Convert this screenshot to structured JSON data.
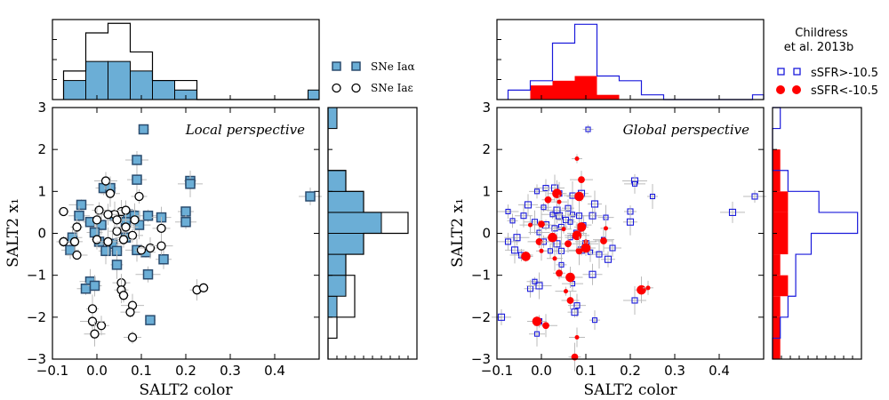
{
  "colors": {
    "alpha_fill": "#6baed6",
    "alpha_edge": "#2b4c6f",
    "eps_fill": "#ffffff",
    "eps_edge": "#000000",
    "high_ssfr": "#1a1adb",
    "low_ssfr": "#ff0000",
    "errbar": "#bbbbbb"
  },
  "chart_data": [
    {
      "id": "left",
      "type": "scatter",
      "annotation": "Local perspective",
      "xlabel": "SALT2  color",
      "ylabel": "SALT2  x₁",
      "xlim": [
        -0.1,
        0.5
      ],
      "ylim": [
        -3,
        3
      ],
      "xticks": [
        -0.1,
        0.0,
        0.1,
        0.2,
        0.3,
        0.4
      ],
      "xtick_labels": [
        "−0.1",
        "0.0",
        "0.1",
        "0.2",
        "0.3",
        "0.4"
      ],
      "yticks": [
        -3,
        -2,
        -1,
        0,
        1,
        2,
        3
      ],
      "ytick_labels": [
        "−3",
        "−2",
        "−1",
        "0",
        "1",
        "2",
        "3"
      ],
      "legend": [
        "SNe Iaα",
        "SNe Iaε"
      ],
      "series": [
        {
          "name": "SNe Iaα",
          "marker": "square",
          "points": [
            [
              0.105,
              2.48
            ],
            [
              0.09,
              1.75
            ],
            [
              0.09,
              1.28
            ],
            [
              0.015,
              1.08
            ],
            [
              0.03,
              1.08
            ],
            [
              -0.035,
              0.68
            ],
            [
              -0.04,
              0.42
            ],
            [
              0.04,
              0.42
            ],
            [
              0.07,
              0.45
            ],
            [
              0.085,
              0.42
            ],
            [
              0.115,
              0.42
            ],
            [
              0.145,
              0.38
            ],
            [
              0.2,
              0.52
            ],
            [
              0.21,
              1.25
            ],
            [
              0.21,
              1.18
            ],
            [
              0.2,
              0.27
            ],
            [
              0.065,
              0.27
            ],
            [
              -0.015,
              0.27
            ],
            [
              0.01,
              0.2
            ],
            [
              0.095,
              0.2
            ],
            [
              -0.055,
              -0.1
            ],
            [
              -0.005,
              0.02
            ],
            [
              0.005,
              -0.2
            ],
            [
              0.035,
              -0.25
            ],
            [
              0.065,
              -0.1
            ],
            [
              -0.06,
              -0.4
            ],
            [
              0.02,
              -0.42
            ],
            [
              0.045,
              -0.42
            ],
            [
              0.09,
              -0.4
            ],
            [
              0.11,
              -0.45
            ],
            [
              0.15,
              -0.62
            ],
            [
              0.045,
              -0.75
            ],
            [
              0.115,
              -0.98
            ],
            [
              -0.015,
              -1.15
            ],
            [
              -0.025,
              -1.32
            ],
            [
              -0.005,
              -1.25
            ],
            [
              0.12,
              -2.07
            ],
            [
              0.48,
              0.88
            ]
          ]
        },
        {
          "name": "SNe Iaε",
          "marker": "circle",
          "points": [
            [
              -0.075,
              0.52
            ],
            [
              0.02,
              1.25
            ],
            [
              0.03,
              0.95
            ],
            [
              0.095,
              0.88
            ],
            [
              0.055,
              0.52
            ],
            [
              0.04,
              0.45
            ],
            [
              0.065,
              0.55
            ],
            [
              0.085,
              0.32
            ],
            [
              0.005,
              0.55
            ],
            [
              0.0,
              0.32
            ],
            [
              0.045,
              0.32
            ],
            [
              0.025,
              0.45
            ],
            [
              0.045,
              0.05
            ],
            [
              -0.045,
              0.15
            ],
            [
              0.065,
              0.15
            ],
            [
              0.08,
              -0.05
            ],
            [
              0.145,
              0.12
            ],
            [
              -0.075,
              -0.2
            ],
            [
              0.0,
              -0.15
            ],
            [
              0.025,
              -0.2
            ],
            [
              0.06,
              -0.15
            ],
            [
              -0.05,
              -0.2
            ],
            [
              0.1,
              -0.4
            ],
            [
              0.12,
              -0.35
            ],
            [
              -0.045,
              -0.52
            ],
            [
              0.055,
              -1.18
            ],
            [
              0.055,
              -1.35
            ],
            [
              0.06,
              -1.48
            ],
            [
              0.08,
              -1.72
            ],
            [
              0.075,
              -1.88
            ],
            [
              0.01,
              -2.2
            ],
            [
              -0.01,
              -1.8
            ],
            [
              -0.01,
              -2.1
            ],
            [
              -0.005,
              -2.4
            ],
            [
              0.08,
              -2.48
            ],
            [
              0.225,
              -1.35
            ],
            [
              0.24,
              -1.3
            ],
            [
              0.145,
              -0.3
            ]
          ]
        }
      ]
    },
    {
      "id": "right",
      "type": "scatter",
      "annotation": "Global perspective",
      "xlabel": "SALT2  color",
      "ylabel": "SALT2  x₁",
      "xlim": [
        -0.1,
        0.5
      ],
      "ylim": [
        -3,
        3
      ],
      "xticks": [
        -0.1,
        0.0,
        0.1,
        0.2,
        0.3,
        0.4
      ],
      "xtick_labels": [
        "−0.1",
        "0.0",
        "0.1",
        "0.2",
        "0.3",
        "0.4"
      ],
      "yticks": [
        -3,
        -2,
        -1,
        0,
        1,
        2,
        3
      ],
      "ytick_labels": [
        "−3",
        "−2",
        "−1",
        "0",
        "1",
        "2",
        "3"
      ],
      "legend_title": [
        "Childress",
        "et al. 2013b"
      ],
      "legend": [
        "sSFR>-10.5",
        "sSFR<-10.5"
      ],
      "series": [
        {
          "name": "sSFR>-10.5",
          "marker": "square",
          "points": [
            [
              0.105,
              2.48
            ],
            [
              0.01,
              1.08
            ],
            [
              0.03,
              1.08
            ],
            [
              -0.01,
              1.0
            ],
            [
              0.04,
              0.95
            ],
            [
              0.21,
              1.25
            ],
            [
              0.21,
              1.18
            ],
            [
              0.07,
              0.9
            ],
            [
              0.09,
              0.95
            ],
            [
              0.25,
              0.88
            ],
            [
              0.48,
              0.88
            ],
            [
              -0.03,
              0.68
            ],
            [
              0.005,
              0.62
            ],
            [
              0.06,
              0.6
            ],
            [
              0.035,
              0.55
            ],
            [
              -0.075,
              0.52
            ],
            [
              -0.04,
              0.42
            ],
            [
              0.04,
              0.42
            ],
            [
              0.07,
              0.45
            ],
            [
              0.085,
              0.42
            ],
            [
              0.115,
              0.42
            ],
            [
              0.145,
              0.38
            ],
            [
              0.2,
              0.52
            ],
            [
              0.43,
              0.5
            ],
            [
              0.025,
              0.45
            ],
            [
              0.055,
              0.32
            ],
            [
              0.2,
              0.27
            ],
            [
              0.065,
              0.27
            ],
            [
              -0.015,
              0.27
            ],
            [
              0.01,
              0.2
            ],
            [
              0.095,
              0.2
            ],
            [
              0.045,
              0.15
            ],
            [
              -0.055,
              -0.1
            ],
            [
              -0.005,
              0.02
            ],
            [
              0.005,
              -0.2
            ],
            [
              0.035,
              -0.25
            ],
            [
              0.065,
              -0.1
            ],
            [
              -0.075,
              -0.2
            ],
            [
              -0.06,
              -0.4
            ],
            [
              0.02,
              -0.42
            ],
            [
              0.045,
              -0.42
            ],
            [
              0.09,
              -0.4
            ],
            [
              0.11,
              -0.45
            ],
            [
              0.13,
              -0.5
            ],
            [
              0.15,
              -0.62
            ],
            [
              0.045,
              -0.75
            ],
            [
              -0.045,
              -0.52
            ],
            [
              0.115,
              -0.98
            ],
            [
              -0.015,
              -1.15
            ],
            [
              -0.025,
              -1.32
            ],
            [
              -0.005,
              -1.25
            ],
            [
              0.07,
              -1.2
            ],
            [
              0.08,
              -1.72
            ],
            [
              0.075,
              -1.88
            ],
            [
              0.12,
              -2.07
            ],
            [
              0.21,
              -1.6
            ],
            [
              -0.09,
              -2.0
            ],
            [
              -0.01,
              -2.4
            ],
            [
              -0.005,
              -2.1
            ],
            [
              0.1,
              -0.25
            ],
            [
              0.14,
              -0.15
            ],
            [
              0.16,
              -0.35
            ],
            [
              0.12,
              0.7
            ],
            [
              -0.065,
              0.3
            ],
            [
              0.03,
              0.12
            ],
            [
              0.08,
              0.0
            ]
          ]
        },
        {
          "name": "sSFR<-10.5",
          "marker": "circle",
          "points": [
            [
              0.08,
              1.78
            ],
            [
              0.09,
              1.28
            ],
            [
              0.035,
              0.95
            ],
            [
              0.04,
              0.75
            ],
            [
              0.015,
              0.8
            ],
            [
              0.085,
              0.88
            ],
            [
              -0.025,
              0.2
            ],
            [
              0.0,
              0.22
            ],
            [
              0.09,
              0.15
            ],
            [
              0.145,
              0.12
            ],
            [
              -0.005,
              -0.2
            ],
            [
              0.025,
              -0.1
            ],
            [
              0.05,
              0.1
            ],
            [
              0.06,
              -0.25
            ],
            [
              0.08,
              -0.05
            ],
            [
              0.1,
              -0.2
            ],
            [
              0.14,
              -0.18
            ],
            [
              -0.035,
              -0.55
            ],
            [
              0.0,
              -0.42
            ],
            [
              0.085,
              -0.42
            ],
            [
              0.1,
              -0.35
            ],
            [
              0.03,
              -0.6
            ],
            [
              0.04,
              -0.95
            ],
            [
              0.065,
              -1.05
            ],
            [
              0.055,
              -1.38
            ],
            [
              0.065,
              -1.6
            ],
            [
              0.225,
              -1.35
            ],
            [
              0.24,
              -1.3
            ],
            [
              0.01,
              -2.2
            ],
            [
              -0.01,
              -2.1
            ],
            [
              0.08,
              -2.48
            ],
            [
              0.075,
              -2.95
            ]
          ]
        }
      ]
    },
    {
      "id": "left_top_hist",
      "type": "histogram",
      "orientation": "vertical",
      "bin_edges": [
        -0.075,
        -0.025,
        0.025,
        0.075,
        0.125,
        0.175,
        0.225,
        0.275,
        0.325,
        0.375,
        0.425,
        0.475,
        0.525
      ],
      "series": [
        {
          "name": "SNe Iaε",
          "style": "outline",
          "counts": [
            3,
            7,
            8,
            5,
            2,
            2,
            0,
            0,
            0,
            0,
            0,
            0
          ]
        },
        {
          "name": "SNe Iaα",
          "style": "filled",
          "counts": [
            2,
            4,
            4,
            3,
            2,
            1,
            0,
            0,
            0,
            0,
            0,
            1
          ]
        }
      ],
      "ymax": 8.4
    },
    {
      "id": "left_right_hist",
      "type": "histogram",
      "orientation": "horizontal",
      "bin_edges": [
        -3,
        -2.5,
        -2,
        -1.5,
        -1,
        -0.5,
        0,
        0.5,
        1,
        1.5,
        2,
        2.5,
        3
      ],
      "series": [
        {
          "name": "SNe Iaε",
          "style": "outline",
          "counts": [
            0,
            1,
            3,
            3,
            2,
            4,
            9,
            4,
            2,
            0,
            0,
            0
          ]
        },
        {
          "name": "SNe Iaα",
          "style": "filled",
          "counts": [
            0,
            0,
            1,
            2,
            2,
            4,
            6,
            4,
            2,
            0,
            0,
            1
          ]
        }
      ],
      "xmax": 10
    },
    {
      "id": "right_top_hist",
      "type": "histogram",
      "orientation": "vertical",
      "bin_edges": [
        -0.075,
        -0.025,
        0.025,
        0.075,
        0.125,
        0.175,
        0.225,
        0.275,
        0.325,
        0.375,
        0.425,
        0.475,
        0.525
      ],
      "series": [
        {
          "name": "sSFR>-10.5",
          "style": "outline",
          "counts": [
            2,
            4,
            12,
            16,
            5,
            4,
            1,
            0,
            0,
            0,
            0,
            1
          ]
        },
        {
          "name": "sSFR<-10.5",
          "style": "filled",
          "counts": [
            0,
            3,
            4,
            5,
            1,
            0,
            0,
            0,
            0,
            0,
            0,
            0
          ]
        }
      ],
      "ymax": 17
    },
    {
      "id": "right_right_hist",
      "type": "histogram",
      "orientation": "horizontal",
      "bin_edges": [
        -3,
        -2.5,
        -2,
        -1.5,
        -1,
        -0.5,
        0,
        0.5,
        1,
        1.5,
        2,
        2.5,
        3
      ],
      "series": [
        {
          "name": "sSFR>-10.5",
          "style": "outline",
          "counts": [
            0,
            1,
            2,
            3,
            3,
            5,
            11,
            6,
            2,
            0,
            0,
            1
          ]
        },
        {
          "name": "sSFR<-10.5",
          "style": "filled",
          "counts": [
            1,
            1,
            1,
            2,
            1,
            2,
            2,
            2,
            1,
            1,
            0,
            0
          ]
        }
      ],
      "xmax": 11.5
    }
  ]
}
